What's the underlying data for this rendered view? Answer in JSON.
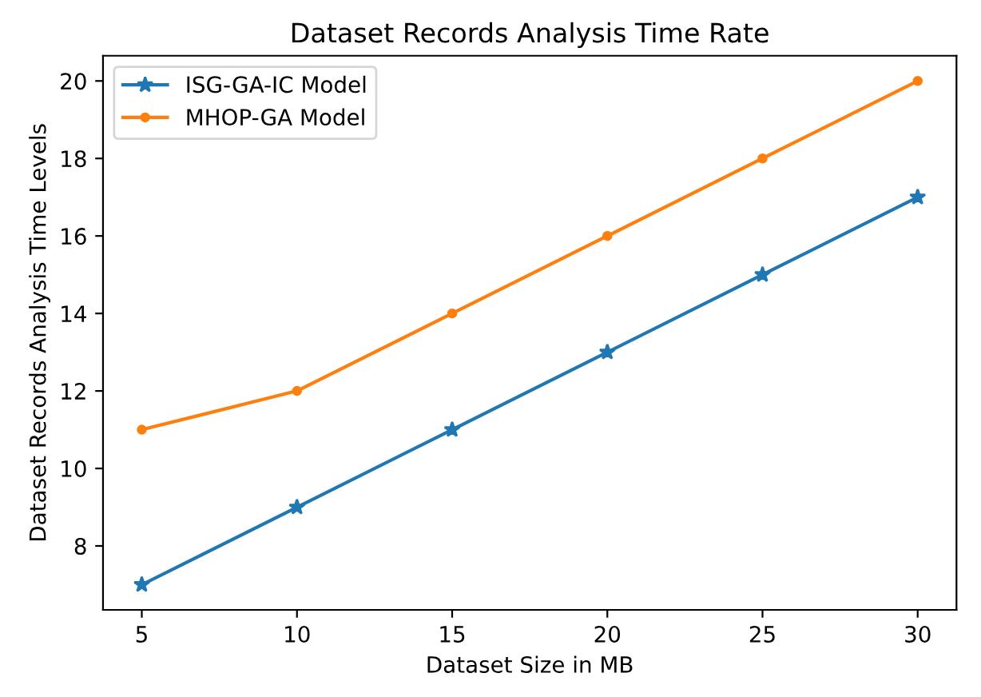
{
  "chart_data": {
    "type": "line",
    "title": "Dataset Records Analysis Time Rate",
    "xlabel": "Dataset Size in MB",
    "ylabel": "Dataset Records Analysis Time Levels",
    "x": [
      5,
      10,
      15,
      20,
      25,
      30
    ],
    "series": [
      {
        "name": "ISG-GA-IC Model",
        "color": "#1f77b4",
        "marker": "star",
        "values": [
          7,
          9,
          11,
          13,
          15,
          17
        ]
      },
      {
        "name": "MHOP-GA Model",
        "color": "#ff7f0e",
        "marker": "circle",
        "values": [
          11,
          12,
          14,
          16,
          18,
          20
        ]
      }
    ],
    "xlim": [
      3.75,
      31.25
    ],
    "ylim": [
      6.35,
      20.65
    ],
    "xticks": [
      5,
      10,
      15,
      20,
      25,
      30
    ],
    "yticks": [
      8,
      10,
      12,
      14,
      16,
      18,
      20
    ],
    "grid": false,
    "legend": "top left",
    "line_style": "solid"
  }
}
